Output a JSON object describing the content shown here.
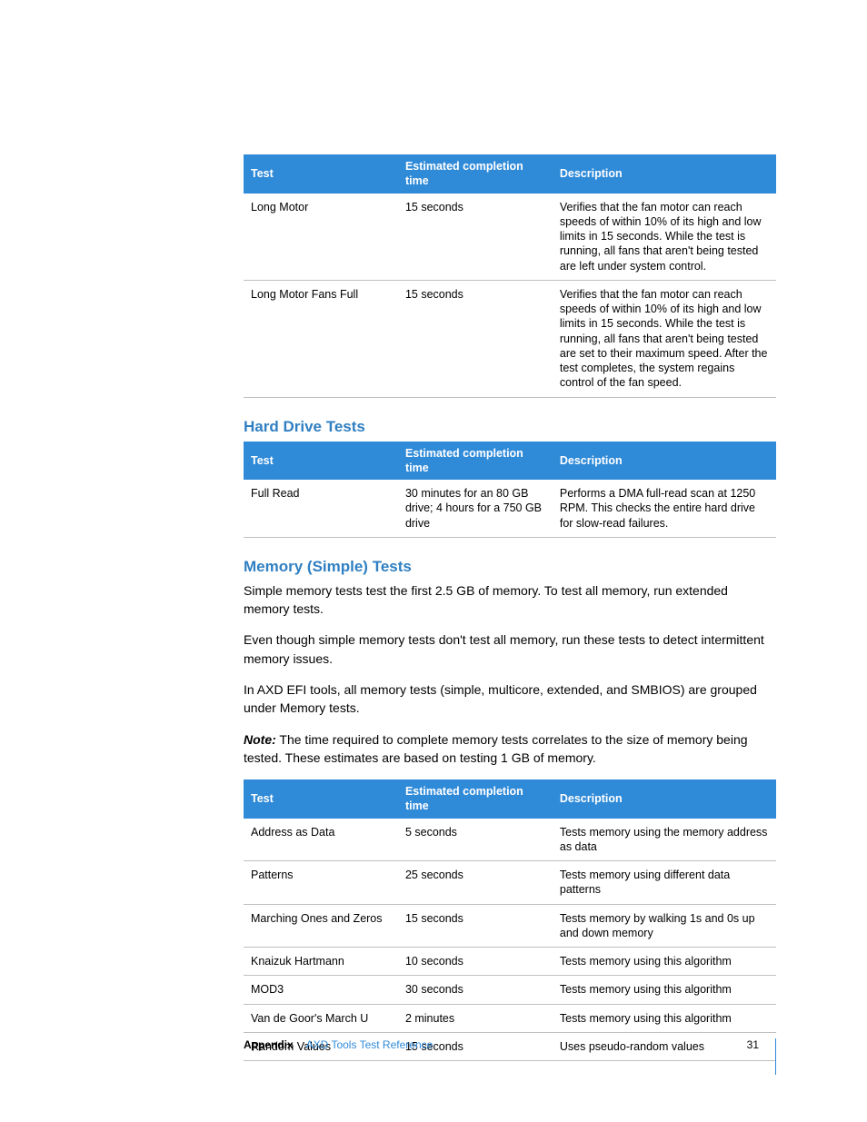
{
  "colors": {
    "header_bg": "#2f8ad8",
    "header_fg": "#ffffff",
    "heading_fg": "#2f7fc2",
    "border": "#bfbfbf",
    "text": "#000000",
    "footer_accent": "#2f8ad8"
  },
  "typography": {
    "body_fontsize_pt": 10.5,
    "heading_fontsize_pt": 13,
    "table_fontsize_pt": 9.5,
    "footer_fontsize_pt": 9
  },
  "table_a": {
    "columns": [
      "Test",
      "Estimated completion time",
      "Description"
    ],
    "col_widths_pct": [
      29,
      29,
      42
    ],
    "rows": [
      [
        "Long Motor",
        "15 seconds",
        "Verifies that the fan motor can reach speeds of within 10% of its high and low limits in 15 seconds. While the test is running, all fans that aren't being tested are left under system control."
      ],
      [
        "Long Motor Fans Full",
        "15 seconds",
        "Verifies that the fan motor can reach speeds of within 10% of its high and low limits in 15 seconds. While the test is running, all fans that aren't being tested are set to their maximum speed. After the test completes, the system regains control of the fan speed."
      ]
    ]
  },
  "section_hd": {
    "title": "Hard Drive Tests"
  },
  "table_b": {
    "columns": [
      "Test",
      "Estimated completion time",
      "Description"
    ],
    "col_widths_pct": [
      29,
      29,
      42
    ],
    "rows": [
      [
        "Full Read",
        "30 minutes for an 80 GB drive; 4 hours for a 750 GB drive",
        "Performs a DMA full-read scan at 1250 RPM. This checks the entire hard drive for slow-read failures."
      ]
    ]
  },
  "section_mem": {
    "title": "Memory (Simple) Tests",
    "p1": "Simple memory tests test the first 2.5 GB of memory. To test all memory, run extended memory tests.",
    "p2": "Even though simple memory tests don't test all memory, run these tests to detect intermittent memory issues.",
    "p3": "In AXD EFI tools, all memory tests (simple, multicore, extended, and SMBIOS) are grouped under Memory tests.",
    "note_label": "Note:",
    "note_body": "  The time required to complete memory tests correlates to the size of memory being tested. These estimates are based on testing 1 GB of memory."
  },
  "table_c": {
    "columns": [
      "Test",
      "Estimated completion time",
      "Description"
    ],
    "col_widths_pct": [
      29,
      29,
      42
    ],
    "rows": [
      [
        "Address as Data",
        "5 seconds",
        "Tests memory using the memory address as data"
      ],
      [
        "Patterns",
        "25 seconds",
        "Tests memory using different data patterns"
      ],
      [
        "Marching Ones and Zeros",
        "15 seconds",
        "Tests memory by walking 1s and 0s up and down memory"
      ],
      [
        "Knaizuk Hartmann",
        "10 seconds",
        "Tests memory using this algorithm"
      ],
      [
        "MOD3",
        "30 seconds",
        "Tests memory using this algorithm"
      ],
      [
        "Van de Goor's March U",
        "2 minutes",
        "Tests memory using this algorithm"
      ],
      [
        "Random Values",
        "15 seconds",
        "Uses pseudo-random values"
      ]
    ]
  },
  "footer": {
    "appendix": "Appendix",
    "title": "AXD Tools Test Reference",
    "page": "31"
  }
}
